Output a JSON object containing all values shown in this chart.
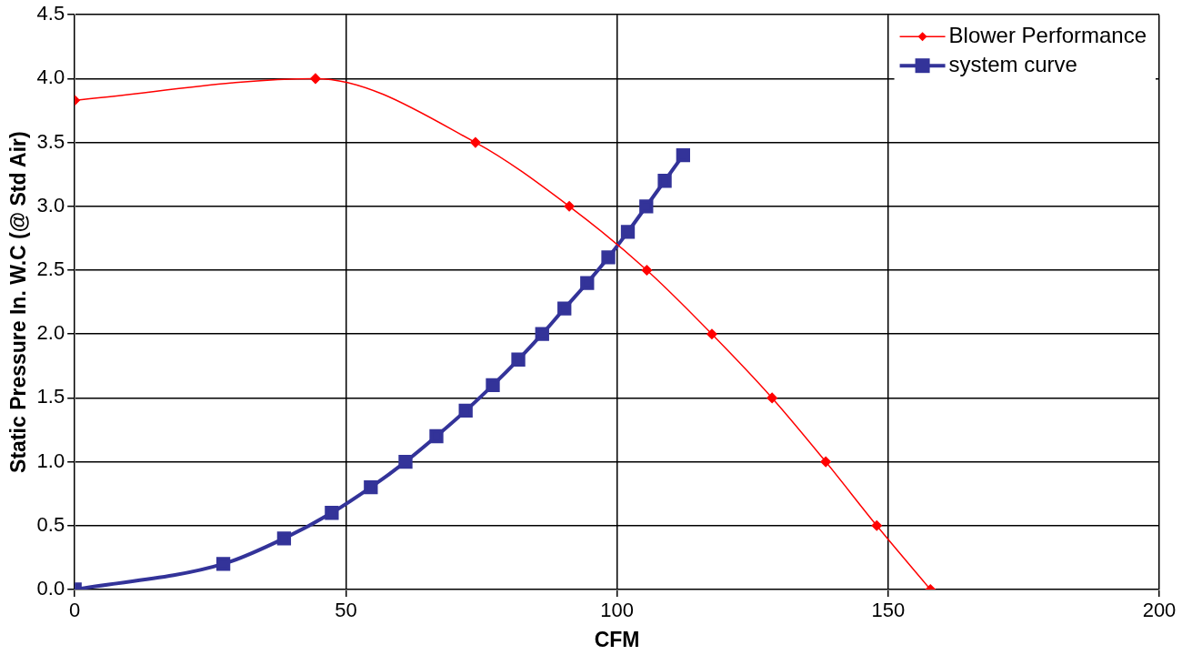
{
  "chart_data": {
    "type": "scatter",
    "xlabel": "CFM",
    "ylabel": "Static Pressure In. W.C (@ Std Air)",
    "xlim": [
      0,
      200
    ],
    "xticks": [
      0,
      50,
      100,
      150,
      200
    ],
    "ylim": [
      0,
      4.5
    ],
    "yticks": [
      {
        "value": 0,
        "label": "0.0"
      },
      {
        "value": 0.5,
        "label": "0.5"
      },
      {
        "value": 1,
        "label": "1.0"
      },
      {
        "value": 1.5,
        "label": "1.5"
      },
      {
        "value": 2,
        "label": "2.0"
      },
      {
        "value": 2.5,
        "label": "2.5"
      },
      {
        "value": 3,
        "label": "3.0"
      },
      {
        "value": 3.5,
        "label": "3.5"
      },
      {
        "value": 4,
        "label": "4.0"
      },
      {
        "value": 4.5,
        "label": "4.5"
      }
    ],
    "grid": true,
    "legend": "top right",
    "series": [
      {
        "name": "Blower Performance",
        "type": "line",
        "color": "#ff0000",
        "marker": "diamond",
        "x": [
          0,
          44.4,
          73.9,
          91.2,
          105.5,
          117.5,
          128.6,
          138.5,
          147.9,
          157.8
        ],
        "values": [
          3.83,
          4.0,
          3.5,
          3.0,
          2.5,
          2.0,
          1.5,
          1.0,
          0.5,
          0
        ]
      },
      {
        "name": "system curve",
        "type": "line",
        "color": "#333399",
        "marker": "square",
        "x": [
          0,
          27.4,
          38.6,
          47.4,
          54.6,
          61.0,
          66.7,
          72.1,
          77.1,
          81.8,
          86.2,
          90.3,
          94.5,
          98.4,
          102.0,
          105.4,
          108.8,
          112.2
        ],
        "values": [
          0,
          0.2,
          0.4,
          0.6,
          0.8,
          1.0,
          1.2,
          1.4,
          1.6,
          1.8,
          2.0,
          2.2,
          2.4,
          2.6,
          2.8,
          3.0,
          3.2,
          3.4
        ]
      }
    ]
  }
}
